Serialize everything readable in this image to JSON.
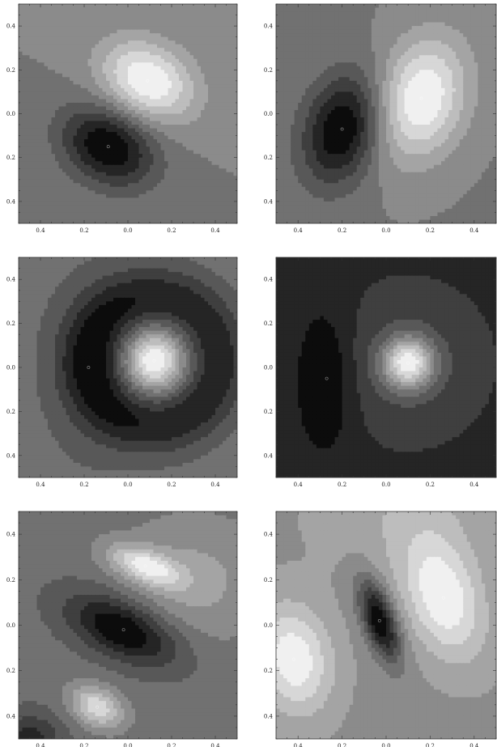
{
  "chart_data": [
    {
      "type": "contour",
      "panel": "top-left",
      "xlim": [
        -0.5,
        0.5
      ],
      "ylim": [
        -0.5,
        0.5
      ],
      "x_ticks": [
        "0.4",
        "0.2",
        "0.0",
        "0.2",
        "0.4"
      ],
      "y_ticks": [
        "0.4",
        "0.2",
        "0.0",
        "0.2",
        "0.4"
      ],
      "pattern": "dipole",
      "features": [
        {
          "kind": "max",
          "x": 0.09,
          "y": 0.15
        },
        {
          "kind": "min",
          "x": -0.09,
          "y": -0.15
        }
      ]
    },
    {
      "type": "contour",
      "panel": "top-right",
      "xlim": [
        -0.5,
        0.5
      ],
      "ylim": [
        -0.5,
        0.5
      ],
      "x_ticks": [
        "0.4",
        "0.2",
        "0.0",
        "0.2",
        "0.4"
      ],
      "y_ticks": [
        "0.4",
        "0.2",
        "0.0",
        "0.2",
        "0.4"
      ],
      "pattern": "dipole",
      "features": [
        {
          "kind": "max",
          "x": 0.16,
          "y": 0.07
        },
        {
          "kind": "min",
          "x": -0.2,
          "y": -0.07
        }
      ]
    },
    {
      "type": "contour",
      "panel": "middle-left",
      "xlim": [
        -0.5,
        0.5
      ],
      "ylim": [
        -0.5,
        0.5
      ],
      "x_ticks": [
        "0.4",
        "0.2",
        "0.0",
        "0.2",
        "0.4"
      ],
      "y_ticks": [
        "0.4",
        "0.2",
        "0.0",
        "0.2",
        "0.4"
      ],
      "pattern": "ring",
      "features": [
        {
          "kind": "max",
          "x": 0.12,
          "y": 0.03
        },
        {
          "kind": "min-crescent",
          "x": -0.18,
          "y": 0.0
        }
      ]
    },
    {
      "type": "contour",
      "panel": "middle-right",
      "xlim": [
        -0.5,
        0.5
      ],
      "ylim": [
        -0.5,
        0.5
      ],
      "x_ticks": [
        "0.4",
        "0.2",
        "0.0",
        "0.2",
        "0.4"
      ],
      "y_ticks": [
        "0.4",
        "0.2",
        "0.0",
        "0.2",
        "0.4"
      ],
      "pattern": "ring",
      "features": [
        {
          "kind": "max",
          "x": 0.1,
          "y": 0.02
        },
        {
          "kind": "min-crescent",
          "x": -0.27,
          "y": -0.05
        }
      ]
    },
    {
      "type": "contour",
      "panel": "bottom-left",
      "xlim": [
        -0.5,
        0.5
      ],
      "ylim": [
        -0.5,
        0.5
      ],
      "x_ticks": [
        "0.4",
        "0.2",
        "0.0",
        "0.2",
        "0.4"
      ],
      "y_ticks": [
        "0.4",
        "0.2",
        "0.0",
        "0.2",
        "0.4"
      ],
      "pattern": "multipole",
      "features": [
        {
          "kind": "max",
          "x": 0.08,
          "y": 0.26
        },
        {
          "kind": "min",
          "x": -0.02,
          "y": -0.02
        },
        {
          "kind": "max",
          "x": -0.14,
          "y": -0.36
        }
      ]
    },
    {
      "type": "contour",
      "panel": "bottom-right",
      "xlim": [
        -0.5,
        0.5
      ],
      "ylim": [
        -0.5,
        0.5
      ],
      "x_ticks": [
        "0.4",
        "0.2",
        "0.0",
        "0.2",
        "0.4"
      ],
      "y_ticks": [
        "0.4",
        "0.2",
        "0.0",
        "0.2",
        "0.4"
      ],
      "pattern": "tripole",
      "features": [
        {
          "kind": "min",
          "x": -0.03,
          "y": 0.02
        },
        {
          "kind": "max",
          "x": 0.26,
          "y": 0.12
        },
        {
          "kind": "max",
          "x": -0.42,
          "y": -0.15
        }
      ]
    }
  ]
}
